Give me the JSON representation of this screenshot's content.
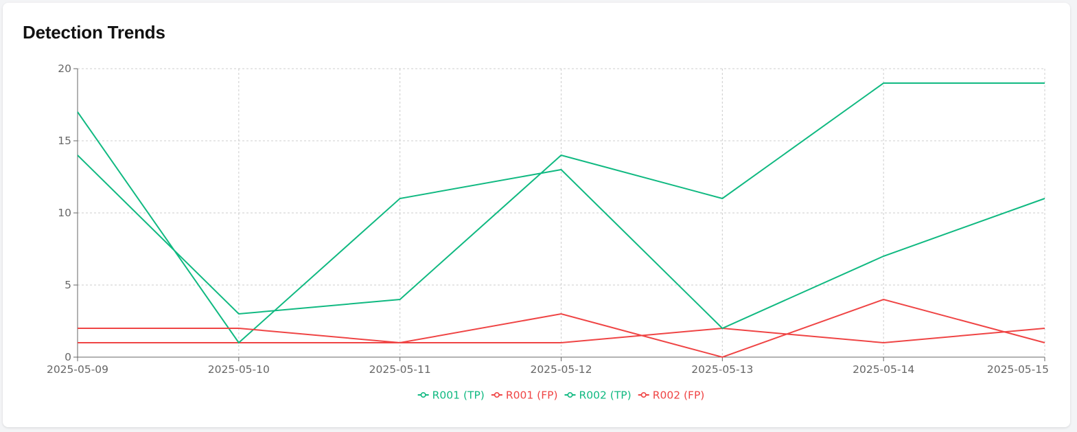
{
  "card": {
    "title": "Detection Trends"
  },
  "chart_data": {
    "type": "line",
    "categories": [
      "2025-05-09",
      "2025-05-10",
      "2025-05-11",
      "2025-05-12",
      "2025-05-13",
      "2025-05-14",
      "2025-05-15"
    ],
    "ylim": [
      0,
      20
    ],
    "yticks": [
      0,
      5,
      10,
      15,
      20
    ],
    "grid": true,
    "grid_style": "dashed",
    "legend_position": "bottom",
    "series": [
      {
        "name": "R001 (TP)",
        "color": "#10b981",
        "values": [
          14,
          3,
          4,
          14,
          11,
          19,
          19
        ]
      },
      {
        "name": "R001 (FP)",
        "color": "#ef4444",
        "values": [
          1,
          1,
          1,
          1,
          2,
          1,
          2
        ]
      },
      {
        "name": "R002 (TP)",
        "color": "#10b981",
        "values": [
          17,
          1,
          11,
          13,
          2,
          7,
          11
        ]
      },
      {
        "name": "R002 (FP)",
        "color": "#ef4444",
        "values": [
          2,
          2,
          1,
          3,
          0,
          4,
          1
        ]
      }
    ]
  }
}
